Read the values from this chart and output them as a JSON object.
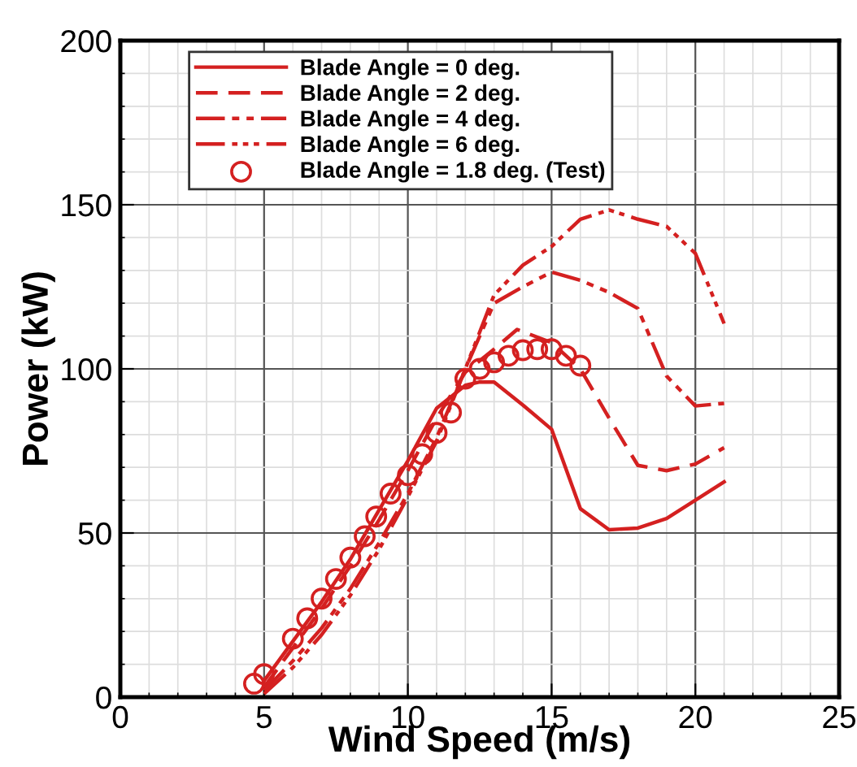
{
  "chart_data": {
    "type": "line",
    "xlabel": "Wind Speed (m/s)",
    "ylabel": "Power (kW)",
    "xlim": [
      0,
      25
    ],
    "xticks": [
      0,
      5,
      10,
      15,
      20,
      25
    ],
    "ylim": [
      0,
      200
    ],
    "yticks": [
      0,
      50,
      100,
      150,
      200
    ],
    "grid": true,
    "legend": "top",
    "series": [
      {
        "name": "Blade Angle = 0 deg.",
        "color": "#d42020",
        "line_style": "solid",
        "marker": "none",
        "x": [
          5,
          6,
          7,
          8,
          9,
          10,
          11,
          12,
          12.5,
          13,
          14,
          15,
          16,
          17,
          18,
          19,
          20,
          21
        ],
        "values": [
          5,
          17,
          29,
          42,
          57,
          72,
          88,
          95,
          96,
          96,
          89,
          81.6,
          57.4,
          51,
          51.5,
          54.4,
          60,
          65.6
        ]
      },
      {
        "name": "Blade Angle = 2 deg.",
        "color": "#d42020",
        "line_style": "dashed",
        "marker": "none",
        "x": [
          5,
          6,
          7,
          8,
          9,
          10,
          11,
          12,
          13,
          13.8,
          15,
          16,
          17,
          18,
          19,
          20,
          21
        ],
        "values": [
          3,
          15,
          27,
          40,
          54,
          69,
          85,
          99,
          106,
          112,
          108,
          100,
          85,
          70.6,
          69,
          71,
          76
        ]
      },
      {
        "name": "Blade Angle = 4 deg.",
        "color": "#d42020",
        "line_style": "dashdot",
        "marker": "none",
        "x": [
          5,
          6,
          7,
          8,
          9,
          10,
          11,
          12,
          13,
          14,
          15,
          16,
          17,
          18,
          19,
          20,
          21
        ],
        "values": [
          2,
          11,
          21,
          33,
          47,
          62,
          79,
          100,
          120,
          125,
          129.5,
          127,
          123.3,
          118.4,
          97.8,
          88.7,
          89.5
        ]
      },
      {
        "name": "Blade Angle = 6 deg.",
        "color": "#d42020",
        "line_style": "dashdotdot",
        "marker": "none",
        "x": [
          5,
          6,
          7,
          8,
          9,
          10,
          11,
          12,
          13,
          14,
          15,
          16,
          17,
          18,
          19,
          20,
          21
        ],
        "values": [
          1,
          9,
          19,
          31,
          45,
          61,
          78,
          100,
          122.5,
          131.6,
          137.3,
          145.6,
          148.4,
          145.6,
          143.4,
          135.2,
          113.8
        ]
      },
      {
        "name": "Blade Angle = 1.8 deg. (Test)",
        "color": "#d42020",
        "type": "scatter",
        "marker": "circle",
        "x": [
          4.65,
          5.0,
          6.0,
          6.5,
          7.0,
          7.5,
          8.0,
          8.5,
          8.9,
          9.4,
          10.0,
          10.5,
          11.0,
          11.5,
          12.0,
          12.5,
          13.0,
          13.5,
          14.0,
          14.5,
          15.0,
          15.5,
          16.0
        ],
        "values": [
          4.1,
          7,
          17.8,
          24,
          30,
          36,
          42.5,
          49,
          55,
          62,
          67.6,
          74,
          80.5,
          86.7,
          97,
          100,
          102,
          104,
          105.7,
          106,
          106,
          104,
          101
        ]
      }
    ]
  }
}
